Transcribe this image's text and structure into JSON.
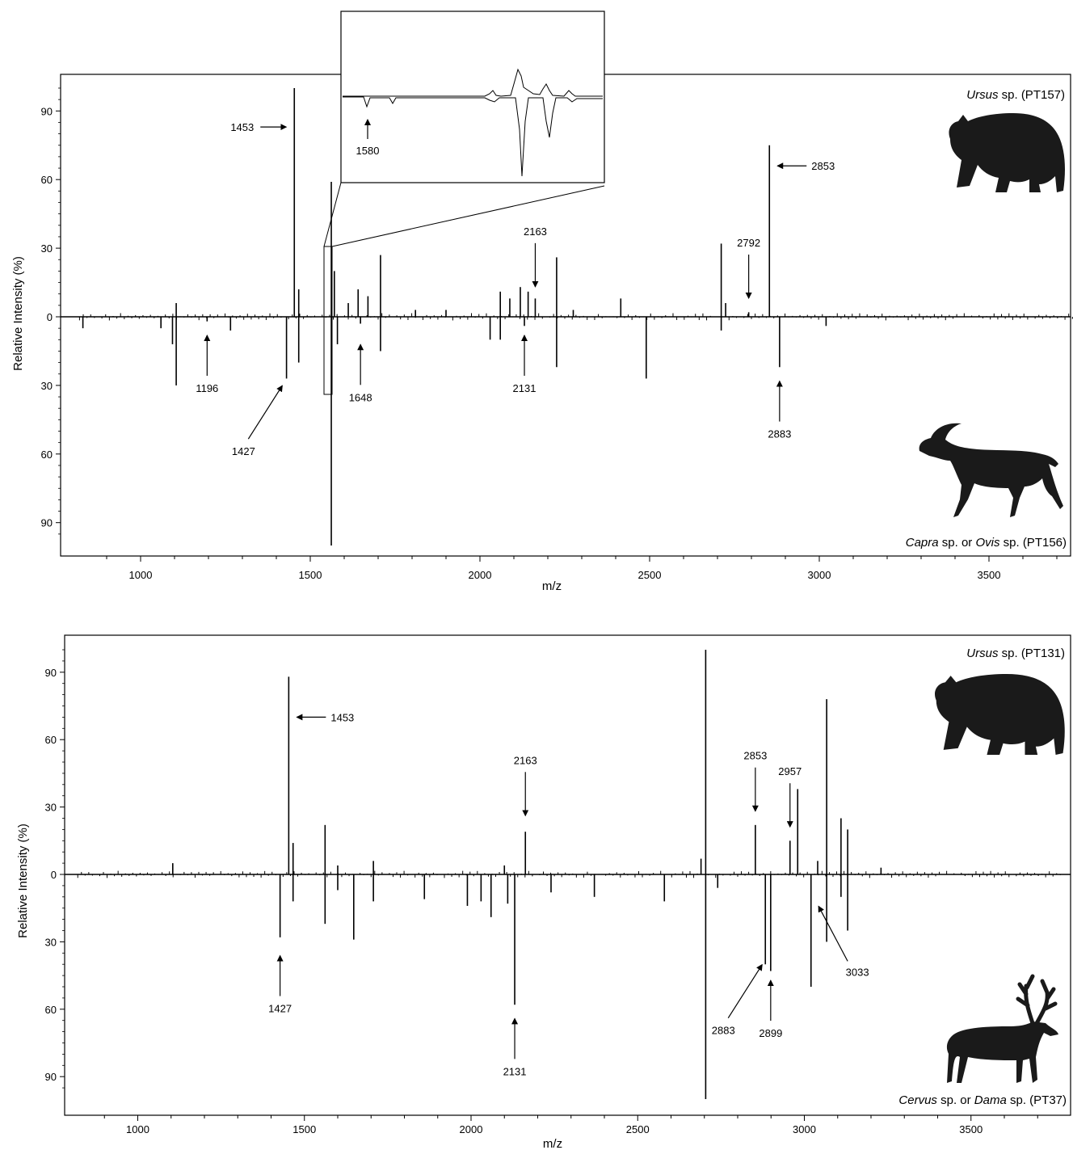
{
  "chart_data": [
    {
      "type": "mirrored-spectrum",
      "panel": "top",
      "xlabel": "m/z",
      "ylabel": "Relative Intensity (%)",
      "xlim": [
        800,
        3790
      ],
      "ylim": [
        -100,
        106
      ],
      "xticks": [
        1000,
        1500,
        2000,
        2500,
        3000,
        3500
      ],
      "yticks": [
        90,
        60,
        30,
        0,
        30,
        60,
        90
      ],
      "species_top": {
        "italic": "Ursus",
        "rest": " sp. (PT157)",
        "icon": "bear-icon"
      },
      "species_bottom": {
        "italic1": "Capra",
        "mid": " sp. or ",
        "italic2": "Ovis",
        "rest": " sp. (PT156)",
        "icon": "goat-icon"
      },
      "annotations": [
        {
          "text": "1453",
          "mz": 1453,
          "y": 83,
          "side": "left"
        },
        {
          "text": "2853",
          "mz": 2853,
          "y": 66,
          "side": "right"
        },
        {
          "text": "2163",
          "mz": 2163,
          "y": 11,
          "side": "up"
        },
        {
          "text": "2792",
          "mz": 2792,
          "y": 6,
          "side": "up"
        },
        {
          "text": "1196",
          "mz": 1196,
          "y": -6,
          "side": "down"
        },
        {
          "text": "1648",
          "mz": 1648,
          "y": -10,
          "side": "down"
        },
        {
          "text": "2131",
          "mz": 2131,
          "y": -6,
          "side": "down"
        },
        {
          "text": "2883",
          "mz": 2883,
          "y": -26,
          "side": "down"
        },
        {
          "text": "1427",
          "mz": 1427,
          "y": -28,
          "side": "down-left"
        }
      ],
      "inset": {
        "label": "1580",
        "range": [
          1568,
          1595
        ]
      },
      "peaks_up": [
        {
          "mz": 1453,
          "y": 100
        },
        {
          "mz": 2853,
          "y": 75
        },
        {
          "mz": 1562,
          "y": 59
        },
        {
          "mz": 2711,
          "y": 32
        },
        {
          "mz": 1707,
          "y": 27
        },
        {
          "mz": 2226,
          "y": 26
        },
        {
          "mz": 1571,
          "y": 20
        },
        {
          "mz": 1466,
          "y": 12
        },
        {
          "mz": 1641,
          "y": 12
        },
        {
          "mz": 2163,
          "y": 8
        },
        {
          "mz": 2119,
          "y": 13
        },
        {
          "mz": 2060,
          "y": 11
        },
        {
          "mz": 2142,
          "y": 11
        },
        {
          "mz": 2088,
          "y": 8
        },
        {
          "mz": 1670,
          "y": 9
        },
        {
          "mz": 1105,
          "y": 6
        },
        {
          "mz": 2415,
          "y": 8
        },
        {
          "mz": 2724,
          "y": 6
        },
        {
          "mz": 1612,
          "y": 6
        },
        {
          "mz": 2792,
          "y": 2
        },
        {
          "mz": 1810,
          "y": 3
        },
        {
          "mz": 1900,
          "y": 3
        },
        {
          "mz": 2275,
          "y": 3
        }
      ],
      "peaks_down": [
        {
          "mz": 1562,
          "y": 100
        },
        {
          "mz": 1105,
          "y": 30
        },
        {
          "mz": 1430,
          "y": 27
        },
        {
          "mz": 2490,
          "y": 27
        },
        {
          "mz": 2226,
          "y": 22
        },
        {
          "mz": 2883,
          "y": 22
        },
        {
          "mz": 1466,
          "y": 20
        },
        {
          "mz": 1707,
          "y": 15
        },
        {
          "mz": 1580,
          "y": 12
        },
        {
          "mz": 2030,
          "y": 10
        },
        {
          "mz": 2060,
          "y": 10
        },
        {
          "mz": 1094,
          "y": 12
        },
        {
          "mz": 2711,
          "y": 6
        },
        {
          "mz": 2131,
          "y": 4
        },
        {
          "mz": 1060,
          "y": 5
        },
        {
          "mz": 830,
          "y": 5
        },
        {
          "mz": 1265,
          "y": 6
        },
        {
          "mz": 1648,
          "y": 3
        },
        {
          "mz": 1196,
          "y": 2
        },
        {
          "mz": 3020,
          "y": 4
        }
      ]
    },
    {
      "type": "mirrored-spectrum",
      "panel": "bottom",
      "xlabel": "m/z",
      "ylabel": "Relative Intensity (%)",
      "xlim": [
        800,
        3790
      ],
      "ylim": [
        -100,
        106
      ],
      "xticks": [
        1000,
        1500,
        2000,
        2500,
        3000,
        3500
      ],
      "yticks": [
        90,
        60,
        30,
        0,
        30,
        60,
        90
      ],
      "species_top": {
        "italic": "Ursus",
        "rest": " sp. (PT131)",
        "icon": "bear-icon"
      },
      "species_bottom": {
        "italic1": "Cervus",
        "mid": " sp. or ",
        "italic2": "Dama",
        "rest": " sp. (PT37)",
        "icon": "deer-icon"
      },
      "annotations": [
        {
          "text": "1453",
          "mz": 1453,
          "y": 70,
          "side": "right"
        },
        {
          "text": "2163",
          "mz": 2163,
          "y": 24,
          "side": "up"
        },
        {
          "text": "2853",
          "mz": 2853,
          "y": 26,
          "side": "up"
        },
        {
          "text": "2957",
          "mz": 2957,
          "y": 19,
          "side": "up"
        },
        {
          "text": "1427",
          "mz": 1427,
          "y": -34,
          "side": "down"
        },
        {
          "text": "2131",
          "mz": 2131,
          "y": -62,
          "side": "down"
        },
        {
          "text": "2883",
          "mz": 2883,
          "y": -38,
          "side": "down-left"
        },
        {
          "text": "2899",
          "mz": 2899,
          "y": -45,
          "side": "down"
        },
        {
          "text": "3033",
          "mz": 3033,
          "y": -12,
          "side": "down-right"
        }
      ],
      "peaks_up": [
        {
          "mz": 2704,
          "y": 100
        },
        {
          "mz": 1453,
          "y": 88
        },
        {
          "mz": 3067,
          "y": 78
        },
        {
          "mz": 2980,
          "y": 38
        },
        {
          "mz": 3110,
          "y": 25
        },
        {
          "mz": 2853,
          "y": 22
        },
        {
          "mz": 1562,
          "y": 22
        },
        {
          "mz": 3130,
          "y": 20
        },
        {
          "mz": 2163,
          "y": 19
        },
        {
          "mz": 2957,
          "y": 15
        },
        {
          "mz": 1466,
          "y": 14
        },
        {
          "mz": 3040,
          "y": 6
        },
        {
          "mz": 1105,
          "y": 5
        },
        {
          "mz": 2690,
          "y": 7
        },
        {
          "mz": 1707,
          "y": 6
        },
        {
          "mz": 1600,
          "y": 4
        },
        {
          "mz": 2100,
          "y": 4
        },
        {
          "mz": 3230,
          "y": 3
        }
      ],
      "peaks_down": [
        {
          "mz": 2704,
          "y": 100
        },
        {
          "mz": 2131,
          "y": 58
        },
        {
          "mz": 3020,
          "y": 50
        },
        {
          "mz": 2899,
          "y": 43
        },
        {
          "mz": 2883,
          "y": 40
        },
        {
          "mz": 3067,
          "y": 30
        },
        {
          "mz": 1648,
          "y": 29
        },
        {
          "mz": 1427,
          "y": 28
        },
        {
          "mz": 3130,
          "y": 25
        },
        {
          "mz": 1562,
          "y": 22
        },
        {
          "mz": 2060,
          "y": 19
        },
        {
          "mz": 2580,
          "y": 12
        },
        {
          "mz": 2030,
          "y": 12
        },
        {
          "mz": 1707,
          "y": 12
        },
        {
          "mz": 1860,
          "y": 11
        },
        {
          "mz": 2110,
          "y": 13
        },
        {
          "mz": 2370,
          "y": 10
        },
        {
          "mz": 1989,
          "y": 14
        },
        {
          "mz": 1466,
          "y": 12
        },
        {
          "mz": 2740,
          "y": 6
        },
        {
          "mz": 1600,
          "y": 7
        },
        {
          "mz": 2240,
          "y": 8
        },
        {
          "mz": 3110,
          "y": 10
        }
      ]
    }
  ]
}
